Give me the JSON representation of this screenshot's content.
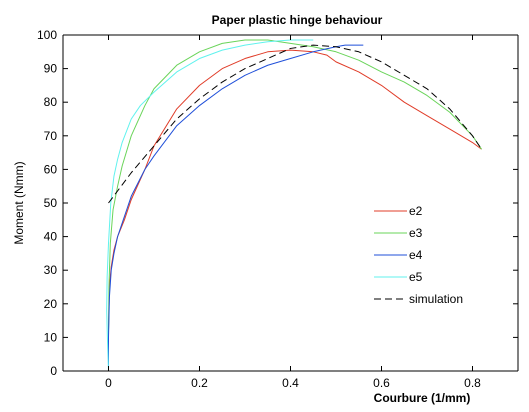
{
  "chart_data": {
    "type": "line",
    "title": "Paper plastic hinge behaviour",
    "xlabel": "Courbure (1/mm)",
    "ylabel": "Moment (Nmm)",
    "xlim": [
      -0.1,
      0.9
    ],
    "ylim": [
      0,
      100
    ],
    "x_ticks": [
      0,
      0.2,
      0.4,
      0.6,
      0.8
    ],
    "x_tick_labels": [
      "0",
      "0.2",
      "0.4",
      "0.6",
      "0.8"
    ],
    "y_ticks": [
      0,
      10,
      20,
      30,
      40,
      50,
      60,
      70,
      80,
      90,
      100
    ],
    "y_tick_labels": [
      "0",
      "10",
      "20",
      "30",
      "40",
      "50",
      "60",
      "70",
      "80",
      "90",
      "100"
    ],
    "grid": false,
    "legend_placement": "lower-right",
    "series": [
      {
        "name": "e2",
        "color": "#e03c28",
        "dash": "solid",
        "x": [
          0.0,
          0.0,
          0.002,
          0.006,
          0.012,
          0.02,
          0.035,
          0.05,
          0.08,
          0.1,
          0.15,
          0.2,
          0.25,
          0.3,
          0.35,
          0.4,
          0.45,
          0.48,
          0.5,
          0.55,
          0.6,
          0.65,
          0.7,
          0.75,
          0.8,
          0.82
        ],
        "y": [
          0,
          12,
          25,
          31,
          36,
          40,
          45,
          51,
          60,
          67,
          78,
          85,
          90,
          93,
          95,
          95.5,
          95,
          94,
          92,
          89,
          85,
          80,
          76,
          72,
          68,
          66
        ]
      },
      {
        "name": "e3",
        "color": "#6ad45a",
        "dash": "solid",
        "x": [
          0.0,
          0.0,
          0.001,
          0.004,
          0.01,
          0.02,
          0.03,
          0.05,
          0.08,
          0.1,
          0.15,
          0.2,
          0.25,
          0.3,
          0.35,
          0.4,
          0.45,
          0.5,
          0.55,
          0.6,
          0.65,
          0.7,
          0.75,
          0.8,
          0.82
        ],
        "y": [
          0,
          12,
          25,
          38,
          48,
          55,
          61,
          70,
          79,
          84,
          91,
          95,
          97.5,
          98.5,
          98.5,
          97.5,
          96.5,
          95,
          92.5,
          89,
          86,
          82,
          77,
          70,
          66
        ]
      },
      {
        "name": "e4",
        "color": "#1f4fd9",
        "dash": "solid",
        "x": [
          0.0,
          0.0,
          0.002,
          0.006,
          0.012,
          0.02,
          0.035,
          0.05,
          0.08,
          0.1,
          0.15,
          0.2,
          0.25,
          0.3,
          0.35,
          0.4,
          0.45,
          0.5,
          0.52,
          0.56
        ],
        "y": [
          0,
          10,
          22,
          30,
          35,
          40,
          46,
          52,
          60,
          64,
          73,
          79,
          84,
          88,
          91,
          93,
          95,
          96.5,
          97,
          97
        ]
      },
      {
        "name": "e5",
        "color": "#60f2ee",
        "dash": "solid",
        "x": [
          0.0,
          -0.002,
          -0.004,
          -0.003,
          0.0,
          0.005,
          0.012,
          0.02,
          0.03,
          0.05,
          0.07,
          0.1,
          0.15,
          0.2,
          0.25,
          0.3,
          0.35,
          0.4,
          0.45
        ],
        "y": [
          0,
          8,
          18,
          28,
          38,
          50,
          58,
          63,
          68,
          75,
          79,
          83,
          89,
          93,
          95.5,
          97,
          98,
          98.5,
          98.5
        ]
      },
      {
        "name": "simulation",
        "color": "#000000",
        "dash": "dashed",
        "x": [
          0.0,
          0.05,
          0.1,
          0.15,
          0.2,
          0.25,
          0.3,
          0.35,
          0.4,
          0.45,
          0.5,
          0.55,
          0.6,
          0.65,
          0.7,
          0.75,
          0.8,
          0.82
        ],
        "y": [
          50,
          59,
          67,
          75,
          81,
          86,
          90,
          93,
          96,
          97,
          96.5,
          95,
          92,
          88,
          84,
          78,
          70,
          66
        ]
      }
    ]
  }
}
